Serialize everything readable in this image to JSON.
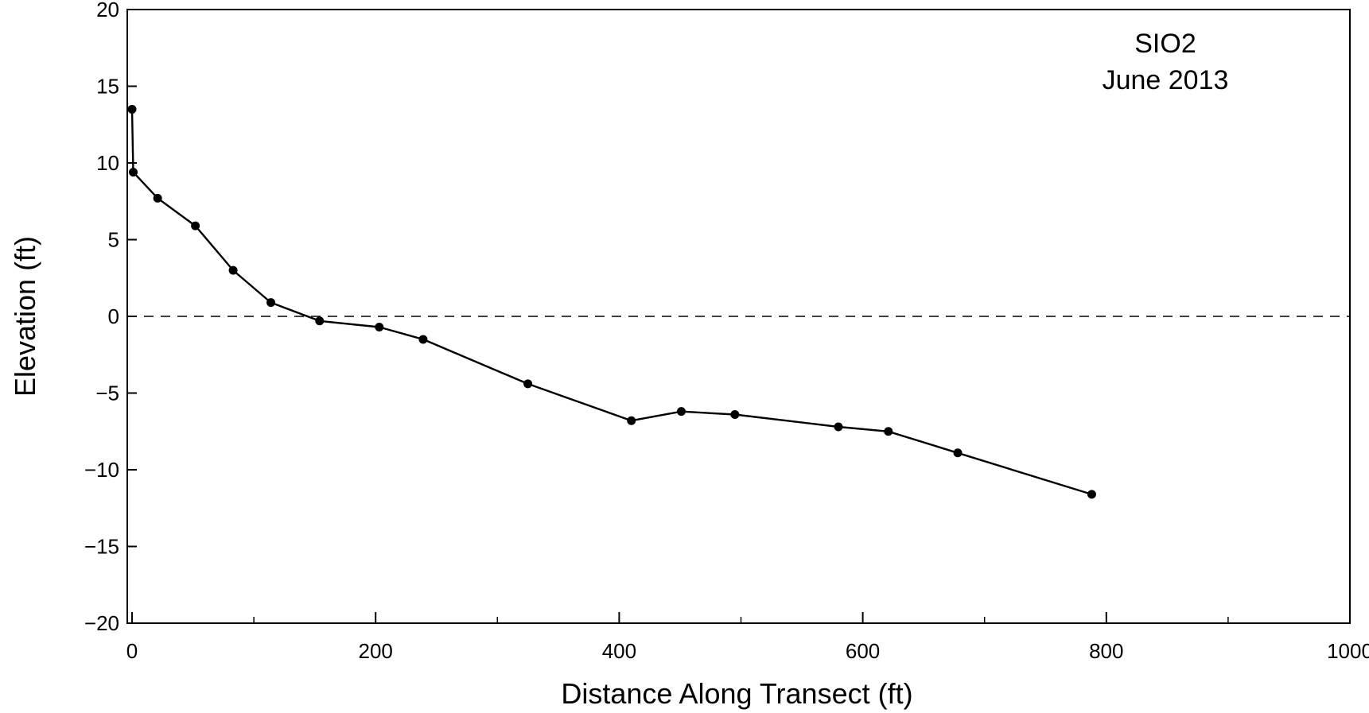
{
  "chart_data": {
    "type": "line",
    "title": "SIO2",
    "subtitle": "June 2013",
    "xlabel": "Distance Along Transect (ft)",
    "ylabel": "Elevation (ft)",
    "xlim": [
      0,
      1000
    ],
    "ylim": [
      -20,
      20
    ],
    "x_ticks": [
      0,
      200,
      400,
      600,
      800,
      1000
    ],
    "x_tick_labels": [
      "0",
      "200",
      "400",
      "600",
      "800",
      "1000"
    ],
    "x_minor_ticks": [
      100,
      300,
      500,
      700,
      900
    ],
    "y_ticks": [
      20,
      15,
      10,
      5,
      0,
      -5,
      -10,
      -15,
      -20
    ],
    "y_tick_labels": [
      "20",
      "15",
      "10",
      "5",
      "0",
      "−10",
      "−15",
      "−20"
    ],
    "y_tick_label_values": [
      20,
      15,
      10,
      5,
      0,
      -10,
      -15,
      -20
    ],
    "y_tick_labels_all": [
      "20",
      "15",
      "10",
      "5",
      "0",
      "−5",
      "−10",
      "−15",
      "−20"
    ],
    "reference_line": {
      "y": 0,
      "style": "dashed"
    },
    "grid": false,
    "series": [
      {
        "x": [
          0,
          1,
          21,
          52,
          83,
          114,
          154,
          203,
          239,
          325,
          410,
          451,
          495,
          580,
          621,
          678,
          788
        ],
        "y": [
          13.5,
          9.4,
          7.7,
          5.9,
          3.0,
          0.9,
          -0.3,
          -0.7,
          -1.5,
          -4.4,
          -6.8,
          -6.2,
          -6.4,
          -7.2,
          -7.5,
          -8.9,
          -11.6
        ]
      }
    ],
    "colors": {
      "line": "#000000",
      "marker": "#000000",
      "axis": "#000000"
    }
  }
}
